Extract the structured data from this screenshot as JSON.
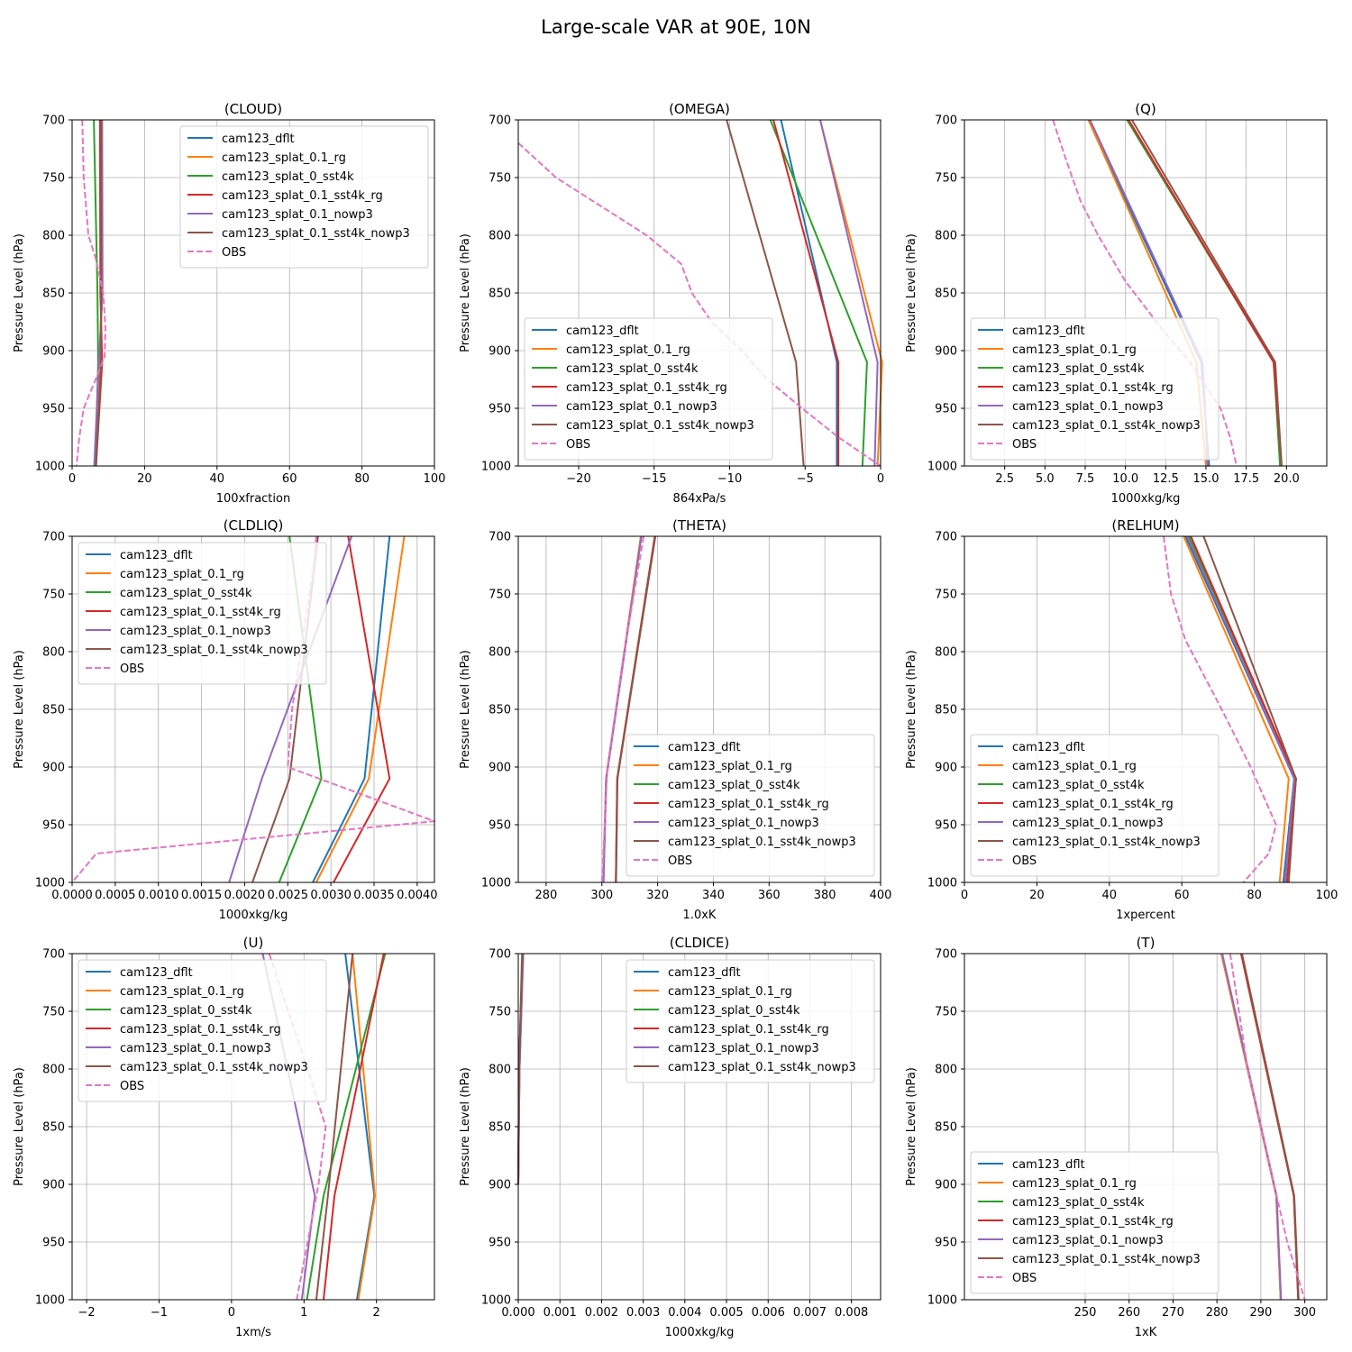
{
  "title": "Large-scale VAR at 90E, 10N",
  "colors": {
    "cam123_dflt": "#1f77b4",
    "cam123_splat_0.1_rg": "#ff7f0e",
    "cam123_splat_0_sst4k": "#2ca02c",
    "cam123_splat_0.1_sst4k_rg": "#d62728",
    "cam123_splat_0.1_nowp3": "#9467bd",
    "cam123_splat_0.1_sst4k_nowp3": "#8c564b",
    "OBS": "#e377c2"
  },
  "legend_labels": [
    "cam123_dflt",
    "cam123_splat_0.1_rg",
    "cam123_splat_0_sst4k",
    "cam123_splat_0.1_sst4k_rg",
    "cam123_splat_0.1_nowp3",
    "cam123_splat_0.1_sst4k_nowp3",
    "OBS"
  ],
  "chart_data": [
    {
      "type": "line",
      "title": "(CLOUD)",
      "xlabel": "100xfraction",
      "ylabel": "Pressure Level (hPa)",
      "xlim": [
        0,
        100
      ],
      "ylim": [
        1000,
        700
      ],
      "xticks": [
        0,
        20,
        40,
        60,
        80,
        100
      ],
      "xtick_labels": [
        "0",
        "20",
        "40",
        "60",
        "80",
        "100"
      ],
      "yticks": [
        700,
        750,
        800,
        850,
        900,
        950,
        1000
      ],
      "legend": "upper-right",
      "y": [
        700,
        850,
        910,
        1000
      ],
      "series": [
        {
          "name": "cam123_dflt",
          "x": [
            8.1,
            8.3,
            7.5,
            6.2
          ]
        },
        {
          "name": "cam123_splat_0.1_rg",
          "x": [
            7.9,
            8.1,
            7.6,
            6.3
          ]
        },
        {
          "name": "cam123_splat_0_sst4k",
          "x": [
            6.0,
            7.0,
            7.2,
            6.4
          ]
        },
        {
          "name": "cam123_splat_0.1_sst4k_rg",
          "x": [
            7.7,
            7.8,
            8.3,
            6.6
          ]
        },
        {
          "name": "cam123_splat_0.1_nowp3",
          "x": [
            8.3,
            8.4,
            7.4,
            6.1
          ]
        },
        {
          "name": "cam123_splat_0.1_sst4k_nowp3",
          "x": [
            8.0,
            8.0,
            8.0,
            6.6
          ]
        },
        {
          "name": "OBS",
          "dashed": true,
          "y": [
            700,
            750,
            800,
            820,
            850,
            880,
            905,
            925,
            950,
            975,
            1000
          ],
          "x": [
            2.8,
            3.2,
            4.5,
            6.5,
            8.6,
            9.2,
            9.0,
            6.5,
            3.2,
            2.0,
            1.2
          ]
        }
      ]
    },
    {
      "type": "line",
      "title": "(OMEGA)",
      "xlabel": "864xPa/s",
      "ylabel": "Pressure Level (hPa)",
      "xlim": [
        -24,
        0
      ],
      "ylim": [
        1000,
        700
      ],
      "xticks": [
        -20,
        -15,
        -10,
        -5,
        0
      ],
      "xtick_labels": [
        "−20",
        "−15",
        "−10",
        "−5",
        "0"
      ],
      "yticks": [
        700,
        750,
        800,
        850,
        900,
        950,
        1000
      ],
      "legend": "lower-left",
      "y": [
        700,
        910,
        1000
      ],
      "series": [
        {
          "name": "cam123_dflt",
          "x": [
            -6.6,
            -2.9,
            -2.9
          ]
        },
        {
          "name": "cam123_splat_0.1_rg",
          "x": [
            -4.0,
            0.1,
            -0.2
          ]
        },
        {
          "name": "cam123_splat_0_sst4k",
          "x": [
            -7.3,
            -0.9,
            -1.2
          ]
        },
        {
          "name": "cam123_splat_0.1_sst4k_rg",
          "x": [
            -7.1,
            -2.8,
            -2.8
          ]
        },
        {
          "name": "cam123_splat_0.1_nowp3",
          "x": [
            -4.0,
            -0.2,
            -0.4
          ]
        },
        {
          "name": "cam123_splat_0.1_sst4k_nowp3",
          "x": [
            -10.2,
            -5.6,
            -5.1
          ]
        },
        {
          "name": "OBS",
          "dashed": true,
          "y": [
            720,
            750,
            775,
            800,
            825,
            850,
            875,
            900,
            925,
            950,
            975,
            1000
          ],
          "x": [
            -24,
            -21.5,
            -18.5,
            -15.5,
            -13.2,
            -12.5,
            -11.2,
            -9.2,
            -7.5,
            -5.2,
            -2.8,
            0
          ]
        }
      ]
    },
    {
      "type": "line",
      "title": "(Q)",
      "xlabel": "1000xkg/kg",
      "ylabel": "Pressure Level (hPa)",
      "xlim": [
        0,
        22.5
      ],
      "ylim": [
        1000,
        700
      ],
      "xticks": [
        2.5,
        5,
        7.5,
        10,
        12.5,
        15,
        17.5,
        20
      ],
      "xtick_labels": [
        "2.5",
        "5.0",
        "7.5",
        "10.0",
        "12.5",
        "15.0",
        "17.5",
        "20.0"
      ],
      "yticks": [
        700,
        750,
        800,
        850,
        900,
        950,
        1000
      ],
      "legend": "lower-left",
      "y": [
        700,
        910,
        1000
      ],
      "series": [
        {
          "name": "cam123_dflt",
          "x": [
            7.7,
            14.7,
            15.2
          ]
        },
        {
          "name": "cam123_splat_0.1_rg",
          "x": [
            7.7,
            14.4,
            15.0
          ]
        },
        {
          "name": "cam123_splat_0_sst4k",
          "x": [
            10.1,
            19.2,
            19.6
          ]
        },
        {
          "name": "cam123_splat_0.1_sst4k_rg",
          "x": [
            10.2,
            19.2,
            19.7
          ]
        },
        {
          "name": "cam123_splat_0.1_nowp3",
          "x": [
            7.8,
            14.8,
            15.1
          ]
        },
        {
          "name": "cam123_splat_0.1_sst4k_nowp3",
          "x": [
            10.4,
            19.3,
            19.7
          ]
        },
        {
          "name": "OBS",
          "dashed": true,
          "y": [
            700,
            730,
            770,
            800,
            840,
            880,
            910,
            950,
            975,
            1000
          ],
          "x": [
            5.5,
            6.2,
            7.2,
            8.3,
            10.0,
            12.2,
            14.0,
            15.9,
            16.5,
            16.9
          ]
        }
      ]
    },
    {
      "type": "line",
      "title": "(CLDLIQ)",
      "xlabel": "1000xkg/kg",
      "ylabel": "Pressure Level (hPa)",
      "xlim": [
        0,
        0.0042
      ],
      "ylim": [
        1000,
        700
      ],
      "xticks": [
        0,
        0.0005,
        0.001,
        0.0015,
        0.002,
        0.0025,
        0.003,
        0.0035,
        0.004
      ],
      "xtick_labels": [
        "0.0000",
        "0.0005",
        "0.0010",
        "0.0015",
        "0.0020",
        "0.0025",
        "0.0030",
        "0.0035",
        "0.0040"
      ],
      "yticks": [
        700,
        750,
        800,
        850,
        900,
        950,
        1000
      ],
      "legend": "upper-left",
      "y": [
        700,
        910,
        1000
      ],
      "series": [
        {
          "name": "cam123_dflt",
          "x": [
            0.00368,
            0.00339,
            0.00279
          ]
        },
        {
          "name": "cam123_splat_0.1_rg",
          "x": [
            0.00385,
            0.00344,
            0.00283
          ]
        },
        {
          "name": "cam123_splat_0_sst4k",
          "x": [
            0.00252,
            0.00289,
            0.0024
          ]
        },
        {
          "name": "cam123_splat_0.1_sst4k_rg",
          "x": [
            0.0032,
            0.00368,
            0.00303
          ]
        },
        {
          "name": "cam123_splat_0.1_nowp3",
          "x": [
            0.00324,
            0.0022,
            0.00182
          ]
        },
        {
          "name": "cam123_splat_0.1_sst4k_nowp3",
          "x": [
            0.00285,
            0.00252,
            0.00209
          ]
        },
        {
          "name": "OBS",
          "dashed": true,
          "y": [
            700,
            725,
            750,
            800,
            850,
            900,
            947,
            975,
            1000
          ],
          "x": [
            0.00283,
            0.0028,
            0.00275,
            0.00265,
            0.00255,
            0.0025,
            0.0042,
            0.00028,
            0.0
          ]
        }
      ]
    },
    {
      "type": "line",
      "title": "(THETA)",
      "xlabel": "1.0xK",
      "ylabel": "Pressure Level (hPa)",
      "xlim": [
        270,
        400
      ],
      "ylim": [
        1000,
        700
      ],
      "xticks": [
        280,
        300,
        320,
        340,
        360,
        380,
        400
      ],
      "xtick_labels": [
        "280",
        "300",
        "320",
        "340",
        "360",
        "380",
        "400"
      ],
      "yticks": [
        700,
        750,
        800,
        850,
        900,
        950,
        1000
      ],
      "legend": "lower-right",
      "y": [
        700,
        910,
        1000
      ],
      "series": [
        {
          "name": "cam123_dflt",
          "x": [
            314,
            301.5,
            300.5
          ]
        },
        {
          "name": "cam123_splat_0.1_rg",
          "x": [
            314,
            301.5,
            300.5
          ]
        },
        {
          "name": "cam123_splat_0_sst4k",
          "x": [
            319,
            305.5,
            305
          ]
        },
        {
          "name": "cam123_splat_0.1_sst4k_rg",
          "x": [
            319,
            305.5,
            305
          ]
        },
        {
          "name": "cam123_splat_0.1_nowp3",
          "x": [
            314.2,
            301.6,
            300.6
          ]
        },
        {
          "name": "cam123_splat_0.1_sst4k_nowp3",
          "x": [
            319.2,
            305.6,
            305.1
          ]
        },
        {
          "name": "OBS",
          "dashed": true,
          "y": [
            700,
            800,
            900,
            950,
            1000
          ],
          "x": [
            315,
            308,
            302,
            301,
            300
          ]
        }
      ]
    },
    {
      "type": "line",
      "title": "(RELHUM)",
      "xlabel": "1xpercent",
      "ylabel": "Pressure Level (hPa)",
      "xlim": [
        0,
        100
      ],
      "ylim": [
        1000,
        700
      ],
      "xticks": [
        0,
        20,
        40,
        60,
        80,
        100
      ],
      "xtick_labels": [
        "0",
        "20",
        "40",
        "60",
        "80",
        "100"
      ],
      "yticks": [
        700,
        750,
        800,
        850,
        900,
        950,
        1000
      ],
      "legend": "lower-left",
      "y": [
        700,
        910,
        1000
      ],
      "series": [
        {
          "name": "cam123_dflt",
          "x": [
            61,
            91,
            88
          ]
        },
        {
          "name": "cam123_splat_0.1_rg",
          "x": [
            60.5,
            89.5,
            87
          ]
        },
        {
          "name": "cam123_splat_0_sst4k",
          "x": [
            62,
            91.5,
            89
          ]
        },
        {
          "name": "cam123_splat_0.1_sst4k_rg",
          "x": [
            62.5,
            91.5,
            89
          ]
        },
        {
          "name": "cam123_splat_0.1_nowp3",
          "x": [
            61.5,
            91,
            88.5
          ]
        },
        {
          "name": "cam123_splat_0.1_sst4k_nowp3",
          "x": [
            66,
            91.5,
            89.5
          ]
        },
        {
          "name": "OBS",
          "dashed": true,
          "y": [
            700,
            750,
            790,
            850,
            900,
            950,
            975,
            1000
          ],
          "x": [
            55,
            57,
            61,
            71,
            79,
            86,
            84,
            77
          ]
        }
      ]
    },
    {
      "type": "line",
      "title": "(U)",
      "xlabel": "1xm/s",
      "ylabel": "Pressure Level (hPa)",
      "xlim": [
        -2.2,
        2.8
      ],
      "ylim": [
        1000,
        700
      ],
      "xticks": [
        -2,
        -1,
        0,
        1,
        2
      ],
      "xtick_labels": [
        "−2",
        "−1",
        "0",
        "1",
        "2"
      ],
      "yticks": [
        700,
        750,
        800,
        850,
        900,
        950,
        1000
      ],
      "legend": "upper-left",
      "y": [
        700,
        910,
        1000
      ],
      "series": [
        {
          "name": "cam123_dflt",
          "x": [
            1.57,
            1.97,
            1.73
          ]
        },
        {
          "name": "cam123_splat_0.1_rg",
          "x": [
            1.67,
            1.98,
            1.75
          ]
        },
        {
          "name": "cam123_splat_0_sst4k",
          "x": [
            2.12,
            1.27,
            1.04
          ]
        },
        {
          "name": "cam123_splat_0.1_sst4k_rg",
          "x": [
            2.1,
            1.42,
            1.27
          ]
        },
        {
          "name": "cam123_splat_0.1_nowp3",
          "x": [
            0.43,
            1.15,
            0.97
          ]
        },
        {
          "name": "cam123_splat_0.1_sst4k_nowp3",
          "x": [
            1.67,
            1.33,
            1.17
          ]
        },
        {
          "name": "OBS",
          "dashed": true,
          "y": [
            700,
            750,
            800,
            850,
            900,
            950,
            1000
          ],
          "x": [
            0.52,
            0.78,
            1.05,
            1.3,
            1.2,
            1.05,
            0.9
          ]
        }
      ]
    },
    {
      "type": "line",
      "title": "(CLDICE)",
      "xlabel": "1000xkg/kg",
      "ylabel": "Pressure Level (hPa)",
      "xlim": [
        0,
        0.0087
      ],
      "ylim": [
        1000,
        700
      ],
      "xticks": [
        0,
        0.001,
        0.002,
        0.003,
        0.004,
        0.005,
        0.006,
        0.007,
        0.008
      ],
      "xtick_labels": [
        "0.000",
        "0.001",
        "0.002",
        "0.003",
        "0.004",
        "0.005",
        "0.006",
        "0.007",
        "0.008"
      ],
      "yticks": [
        700,
        750,
        800,
        850,
        900,
        950,
        1000
      ],
      "legend": "upper-right",
      "y": [
        700,
        800,
        900
      ],
      "series": [
        {
          "name": "cam123_dflt",
          "x": [
            0.00011,
            3e-05,
            0.0
          ]
        },
        {
          "name": "cam123_splat_0.1_rg",
          "x": [
            0.00012,
            3e-05,
            0.0
          ]
        },
        {
          "name": "cam123_splat_0_sst4k",
          "x": [
            9e-05,
            2e-05,
            0.0
          ]
        },
        {
          "name": "cam123_splat_0.1_sst4k_rg",
          "x": [
            0.0001,
            2e-05,
            0.0
          ]
        },
        {
          "name": "cam123_splat_0.1_nowp3",
          "x": [
            0.00012,
            3e-05,
            0.0
          ]
        },
        {
          "name": "cam123_splat_0.1_sst4k_nowp3",
          "x": [
            0.0001,
            2e-05,
            0.0
          ]
        }
      ]
    },
    {
      "type": "line",
      "title": "(T)",
      "xlabel": "1xK",
      "ylabel": "Pressure Level (hPa)",
      "xlim": [
        222.5,
        305
      ],
      "ylim": [
        1000,
        700
      ],
      "xticks": [
        250,
        260,
        270,
        280,
        290,
        300
      ],
      "xtick_labels": [
        "250",
        "260",
        "270",
        "280",
        "290",
        "300"
      ],
      "yticks": [
        700,
        750,
        800,
        850,
        900,
        950,
        1000
      ],
      "legend": "lower-left",
      "y": [
        700,
        910,
        1000
      ],
      "series": [
        {
          "name": "cam123_dflt",
          "x": [
            281,
            293.5,
            294.5
          ]
        },
        {
          "name": "cam123_splat_0.1_rg",
          "x": [
            281,
            293.5,
            294.5
          ]
        },
        {
          "name": "cam123_splat_0_sst4k",
          "x": [
            285.5,
            297.5,
            298.5
          ]
        },
        {
          "name": "cam123_splat_0.1_sst4k_rg",
          "x": [
            285.5,
            297.5,
            298.5
          ]
        },
        {
          "name": "cam123_splat_0.1_nowp3",
          "x": [
            281.2,
            293.6,
            294.6
          ]
        },
        {
          "name": "cam123_splat_0.1_sst4k_nowp3",
          "x": [
            285.7,
            297.6,
            298.6
          ]
        },
        {
          "name": "OBS",
          "dashed": true,
          "y": [
            700,
            800,
            900,
            950,
            1000
          ],
          "x": [
            283,
            287,
            293,
            296,
            300
          ]
        }
      ]
    }
  ]
}
